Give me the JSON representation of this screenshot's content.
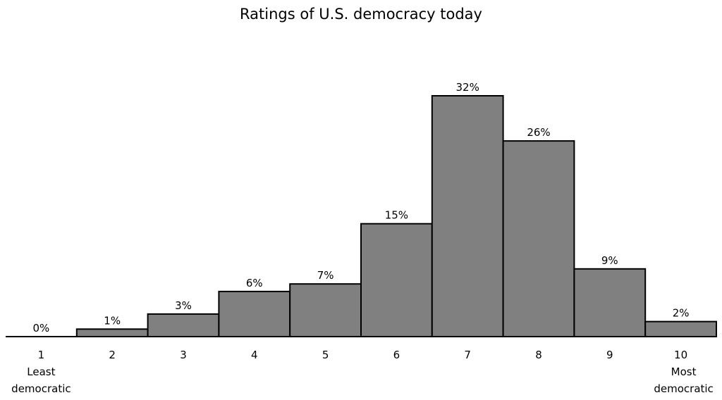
{
  "chart_data": {
    "type": "bar",
    "title": "Ratings of U.S. democracy today",
    "xlabel": "",
    "ylabel": "",
    "categories": [
      "1",
      "2",
      "3",
      "4",
      "5",
      "6",
      "7",
      "8",
      "9",
      "10"
    ],
    "values": [
      0,
      1,
      3,
      6,
      7,
      15,
      32,
      26,
      9,
      2
    ],
    "data_labels": [
      "0%",
      "1%",
      "3%",
      "6%",
      "7%",
      "15%",
      "32%",
      "26%",
      "9%",
      "2%"
    ],
    "x_endpoint_labels": {
      "low": [
        "Least",
        "democratic"
      ],
      "high": [
        "Most",
        "democratic"
      ]
    },
    "ylim": [
      0,
      32
    ],
    "grid": false,
    "legend": "none",
    "bar_color": "#808080",
    "bar_edge_color": "#000000"
  }
}
